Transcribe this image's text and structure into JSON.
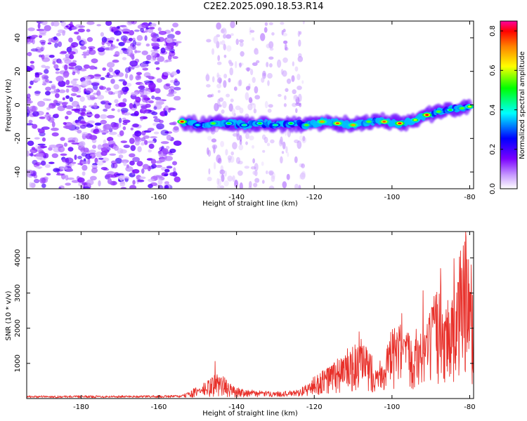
{
  "title": "C2E2.2025.090.18.53.R14",
  "chart_data": [
    {
      "type": "heatmap",
      "title": "",
      "xlabel": "Height of straight line (km)",
      "ylabel": "Frequency (Hz)",
      "xlim": [
        -194,
        -79
      ],
      "ylim": [
        -50,
        50
      ],
      "xticks": [
        -180,
        -160,
        -140,
        -120,
        -100,
        -80
      ],
      "yticks": [
        -40,
        -20,
        0,
        20,
        40
      ],
      "colorbar": {
        "label": "Normalized spectral amplitude",
        "range": [
          0,
          0.85
        ],
        "ticks": [
          0.0,
          0.2,
          0.4,
          0.6,
          0.8
        ],
        "tick_labels": [
          "0.0",
          "0.2",
          "0.4",
          "0.6",
          "0.8"
        ]
      },
      "noise_region": {
        "x_from": -194,
        "x_to": -155,
        "freq_from": -50,
        "freq_to": 50,
        "amplitude": 0.1
      },
      "sparse_noise_region": {
        "x_from": -155,
        "x_to": -125,
        "amplitude": 0.05
      },
      "signal_band": [
        {
          "x": -154,
          "freq": -10,
          "amp": 0.8
        },
        {
          "x": -150,
          "freq": -12,
          "amp": 0.4
        },
        {
          "x": -146,
          "freq": -11,
          "amp": 0.55
        },
        {
          "x": -142,
          "freq": -11,
          "amp": 0.5
        },
        {
          "x": -138,
          "freq": -12,
          "amp": 0.45
        },
        {
          "x": -134,
          "freq": -11,
          "amp": 0.5
        },
        {
          "x": -130,
          "freq": -12,
          "amp": 0.45
        },
        {
          "x": -126,
          "freq": -11,
          "amp": 0.5
        },
        {
          "x": -122,
          "freq": -12,
          "amp": 0.55
        },
        {
          "x": -118,
          "freq": -10,
          "amp": 0.7
        },
        {
          "x": -114,
          "freq": -11,
          "amp": 0.75
        },
        {
          "x": -110,
          "freq": -12,
          "amp": 0.7
        },
        {
          "x": -106,
          "freq": -10,
          "amp": 0.55
        },
        {
          "x": -102,
          "freq": -10,
          "amp": 0.75
        },
        {
          "x": -98,
          "freq": -11,
          "amp": 0.8
        },
        {
          "x": -94,
          "freq": -9,
          "amp": 0.6
        },
        {
          "x": -91,
          "freq": -6,
          "amp": 0.8
        },
        {
          "x": -88,
          "freq": -4,
          "amp": 0.55
        },
        {
          "x": -85,
          "freq": -3,
          "amp": 0.5
        },
        {
          "x": -82,
          "freq": -2,
          "amp": 0.55
        },
        {
          "x": -80,
          "freq": -1,
          "amp": 0.6
        }
      ]
    },
    {
      "type": "line",
      "title": "",
      "xlabel": "Height of straight line (km)",
      "ylabel": "SNR (10 * v/v)",
      "xlim": [
        -194,
        -79
      ],
      "ylim": [
        0,
        4750
      ],
      "xticks": [
        -180,
        -160,
        -140,
        -120,
        -100,
        -80
      ],
      "yticks": [
        1000,
        2000,
        3000,
        4000
      ],
      "color": "#e8302a",
      "envelope": {
        "x": [
          -194,
          -160,
          -154,
          -150,
          -147,
          -146,
          -144,
          -142,
          -140,
          -135,
          -130,
          -125,
          -122,
          -120,
          -118,
          -116,
          -114,
          -112,
          -110,
          -108,
          -106,
          -104,
          -102,
          -100,
          -98,
          -96,
          -94,
          -92,
          -90,
          -88,
          -86,
          -84,
          -82,
          -81,
          -80,
          -79
        ],
        "y": [
          80,
          90,
          100,
          350,
          550,
          680,
          750,
          450,
          320,
          230,
          200,
          230,
          400,
          650,
          800,
          1000,
          1200,
          1400,
          1500,
          1700,
          1400,
          1050,
          1300,
          2000,
          2200,
          1900,
          2100,
          1800,
          2600,
          3400,
          3000,
          3100,
          4600,
          4750,
          4300,
          3000
        ]
      },
      "baseline": {
        "x": [
          -194,
          -150,
          -140,
          -120,
          -110,
          -100,
          -90,
          -80,
          -79
        ],
        "y": [
          20,
          25,
          40,
          60,
          120,
          200,
          300,
          400,
          400
        ]
      },
      "peaks": [
        {
          "x": -145.5,
          "y": 1060
        },
        {
          "x": -108.5,
          "y": 1900
        },
        {
          "x": -97.5,
          "y": 2420
        },
        {
          "x": -92,
          "y": 3070
        },
        {
          "x": -87.5,
          "y": 3700
        },
        {
          "x": -84,
          "y": 3980
        },
        {
          "x": -81,
          "y": 4750
        }
      ]
    }
  ]
}
